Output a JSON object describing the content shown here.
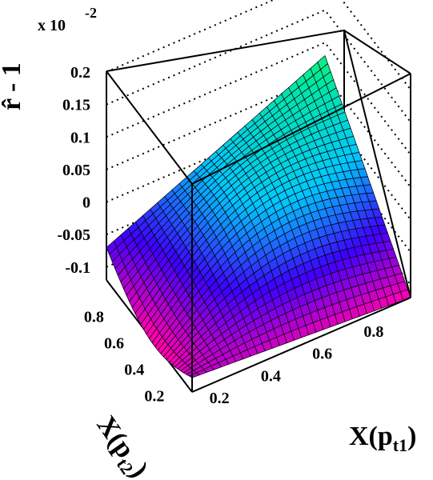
{
  "chart_data": {
    "type": "surface",
    "exponent_label": "x 10",
    "exponent_power": "-2",
    "zlabel": "r̂ - 1",
    "xlabel_main": "X(p",
    "xlabel_sub": "t1",
    "xlabel_close": ")",
    "ylabel_main": "X(p",
    "ylabel_sub": "t2",
    "ylabel_close": ")",
    "x_ticks": [
      "0.2",
      "0.4",
      "0.6",
      "0.8"
    ],
    "y_ticks": [
      "0.2",
      "0.4",
      "0.6",
      "0.8"
    ],
    "z_ticks": [
      "-0.1",
      "-0.05",
      "0",
      "0.05",
      "0.1",
      "0.15",
      "0.2"
    ],
    "z_tick_values": [
      -0.1,
      -0.05,
      0,
      0.05,
      0.1,
      0.15,
      0.2
    ],
    "x_range": [
      0.1,
      0.95
    ],
    "y_range": [
      0.1,
      0.95
    ],
    "zlim": [
      -0.12,
      0.2
    ],
    "grid_count": 30,
    "corner_values": {
      "x_low_y_low": -0.098,
      "x_high_y_low": -0.12,
      "x_low_y_high": -0.07,
      "x_high_y_high": 0.08
    },
    "colormap": [
      "#ff00b0",
      "#3d00ff",
      "#00c8ff",
      "#00e8a0",
      "#30ff30"
    ]
  }
}
